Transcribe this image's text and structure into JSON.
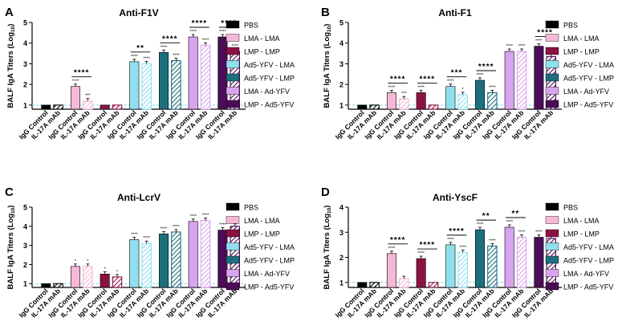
{
  "figure": {
    "legend": [
      {
        "label": "PBS",
        "color": "#000000",
        "pattern": "solid"
      },
      {
        "label": "LMA - LMA",
        "color": "#f5b8d6",
        "pattern": "solid"
      },
      {
        "label": "LMP - LMP",
        "color": "#8c1241",
        "pattern": "solid"
      },
      {
        "label": "Ad5-YFV - LMA",
        "color": "#8fe0ef",
        "pattern": "solid"
      },
      {
        "label": "Ad5-YFV - LMP",
        "color": "#1d6f7e",
        "pattern": "solid"
      },
      {
        "label": "LMA - Ad-YFV",
        "color": "#d9a4ef",
        "pattern": "solid"
      },
      {
        "label": "LMP - Ad5-YFV",
        "color": "#4b0d55",
        "pattern": "solid"
      }
    ]
  },
  "chart_data": [
    {
      "panel_label": "A",
      "type": "bar",
      "title": "Anti-F1V",
      "ylabel_main": "BALF IgA Titers (Log",
      "ylabel_sub": "10",
      "ylabel_end": ")",
      "ylim": [
        0.8,
        5
      ],
      "yticks": [
        "1",
        "2",
        "3",
        "4",
        "5"
      ],
      "baseline": 1,
      "categories": [
        "IgG Control",
        "IL-17A mAb",
        "IgG Control",
        "IL-17A mAb",
        "IgG Control",
        "IL-17A mAb",
        "IgG Control",
        "IL-17A mAb",
        "IgG Control",
        "IL-17A mAb",
        "IgG Control",
        "IL-17A mAb",
        "IgG Control",
        "IL-17A mAb"
      ],
      "groups": [
        "PBS",
        "LMA - LMA",
        "LMP - LMP",
        "Ad5-YFV - LMA",
        "Ad5-YFV - LMP",
        "LMA - Ad-YFV",
        "LMP - Ad5-YFV"
      ],
      "values": [
        1.0,
        1.0,
        1.9,
        1.2,
        1.0,
        1.0,
        3.1,
        3.0,
        3.55,
        3.15,
        4.3,
        3.9,
        4.3,
        3.6
      ],
      "bar_labels": [
        "",
        "",
        "****",
        "***",
        "",
        "",
        "****",
        "****",
        "****",
        "****",
        "****",
        "****",
        "****",
        "****"
      ],
      "comparisons": [
        {
          "pair": [
            2,
            3
          ],
          "label": "****"
        },
        {
          "pair": [
            6,
            7
          ],
          "label": "**"
        },
        {
          "pair": [
            8,
            9
          ],
          "label": "****"
        },
        {
          "pair": [
            10,
            11
          ],
          "label": "****"
        },
        {
          "pair": [
            12,
            13
          ],
          "label": "****"
        }
      ]
    },
    {
      "panel_label": "B",
      "type": "bar",
      "title": "Anti-F1",
      "ylabel_main": "BALF IgA Titers (Log",
      "ylabel_sub": "10",
      "ylabel_end": ")",
      "ylim": [
        0.8,
        5
      ],
      "yticks": [
        "1",
        "2",
        "3",
        "4",
        "5"
      ],
      "baseline": 1,
      "categories": [
        "IgG Control",
        "IL-17A mAb",
        "IgG Control",
        "IL-17A mAb",
        "IgG Control",
        "IL-17A mAb",
        "IgG Control",
        "IL-17A mAb",
        "IgG Control",
        "IL-17A mAb",
        "IgG Control",
        "IL-17A mAb",
        "IgG Control",
        "IL-17A mAb"
      ],
      "groups": [
        "PBS",
        "LMA - LMA",
        "LMP - LMP",
        "Ad5-YFV - LMA",
        "Ad5-YFV - LMP",
        "LMA - Ad-YFV",
        "LMP - Ad5-YFV"
      ],
      "values": [
        1.0,
        1.0,
        1.6,
        1.3,
        1.6,
        1.0,
        1.9,
        1.5,
        2.2,
        1.6,
        3.6,
        3.6,
        3.85,
        3.35
      ],
      "bar_labels": [
        "",
        "",
        "****",
        "***",
        "****",
        "",
        "****",
        "*",
        "****",
        "****",
        "****",
        "****",
        "****",
        "****"
      ],
      "comparisons": [
        {
          "pair": [
            2,
            3
          ],
          "label": "****"
        },
        {
          "pair": [
            4,
            5
          ],
          "label": "****"
        },
        {
          "pair": [
            6,
            7
          ],
          "label": "***"
        },
        {
          "pair": [
            8,
            9
          ],
          "label": "****"
        },
        {
          "pair": [
            12,
            13
          ],
          "label": "****"
        }
      ]
    },
    {
      "panel_label": "C",
      "type": "bar",
      "title": "Anti-LcrV",
      "ylabel_main": "BALF IgA Titers (Log",
      "ylabel_sub": "10",
      "ylabel_end": ")",
      "ylim": [
        0.8,
        5
      ],
      "yticks": [
        "1",
        "2",
        "3",
        "4",
        "5"
      ],
      "baseline": 1,
      "categories": [
        "IgG Control",
        "IL-17A mAb",
        "IgG Control",
        "IL-17A mAb",
        "IgG Control",
        "IL-17A mAb",
        "IgG Control",
        "IL-17A mAb",
        "IgG Control",
        "IL-17A mAb",
        "IgG Control",
        "IL-17A mAb",
        "IgG Control",
        "IL-17A mAb"
      ],
      "groups": [
        "PBS",
        "LMA - LMA",
        "LMP - LMP",
        "Ad5-YFV - LMA",
        "Ad5-YFV - LMP",
        "LMA - Ad-YFV",
        "LMP - Ad5-YFV"
      ],
      "values": [
        1.0,
        1.0,
        1.9,
        1.9,
        1.5,
        1.35,
        3.3,
        3.1,
        3.6,
        3.7,
        4.25,
        4.3,
        3.8,
        4.0
      ],
      "bar_labels": [
        "",
        "",
        "*",
        "*",
        "*",
        "*",
        "****",
        "****",
        "****",
        "****",
        "****",
        "****",
        "****",
        "****"
      ],
      "comparisons": []
    },
    {
      "panel_label": "D",
      "type": "bar",
      "title": "Anti-YscF",
      "ylabel_main": "BALF IgA Titers (Log",
      "ylabel_sub": "10",
      "ylabel_end": ")",
      "ylim": [
        0.8,
        4
      ],
      "yticks": [
        "1",
        "2",
        "3",
        "4"
      ],
      "baseline": 1,
      "categories": [
        "IgG Control",
        "IL-17A mAb",
        "IgG Control",
        "IL-17A mAb",
        "IgG Control",
        "IL-17A mAb",
        "IgG Control",
        "IL-17A mAb",
        "IgG Control",
        "IL-17A mAb",
        "IgG Control",
        "IL-17A mAb",
        "IgG Control",
        "IL-17A mAb"
      ],
      "groups": [
        "PBS",
        "LMA - LMA",
        "LMP - LMP",
        "Ad5-YFV - LMA",
        "Ad5-YFV - LMP",
        "LMA - Ad-YFV",
        "LMP - Ad5-YFV"
      ],
      "values": [
        1.0,
        1.0,
        2.15,
        1.15,
        1.95,
        1.0,
        2.5,
        2.2,
        3.1,
        2.45,
        3.2,
        2.8,
        2.8,
        2.75
      ],
      "bar_labels": [
        "",
        "",
        "****",
        "",
        "****",
        "",
        "****",
        "****",
        "****",
        "****",
        "****",
        "****",
        "****",
        "****"
      ],
      "comparisons": [
        {
          "pair": [
            2,
            3
          ],
          "label": "****"
        },
        {
          "pair": [
            4,
            5
          ],
          "label": "****"
        },
        {
          "pair": [
            6,
            7
          ],
          "label": "****"
        },
        {
          "pair": [
            8,
            9
          ],
          "label": "**"
        },
        {
          "pair": [
            10,
            11
          ],
          "label": "**"
        }
      ]
    }
  ]
}
